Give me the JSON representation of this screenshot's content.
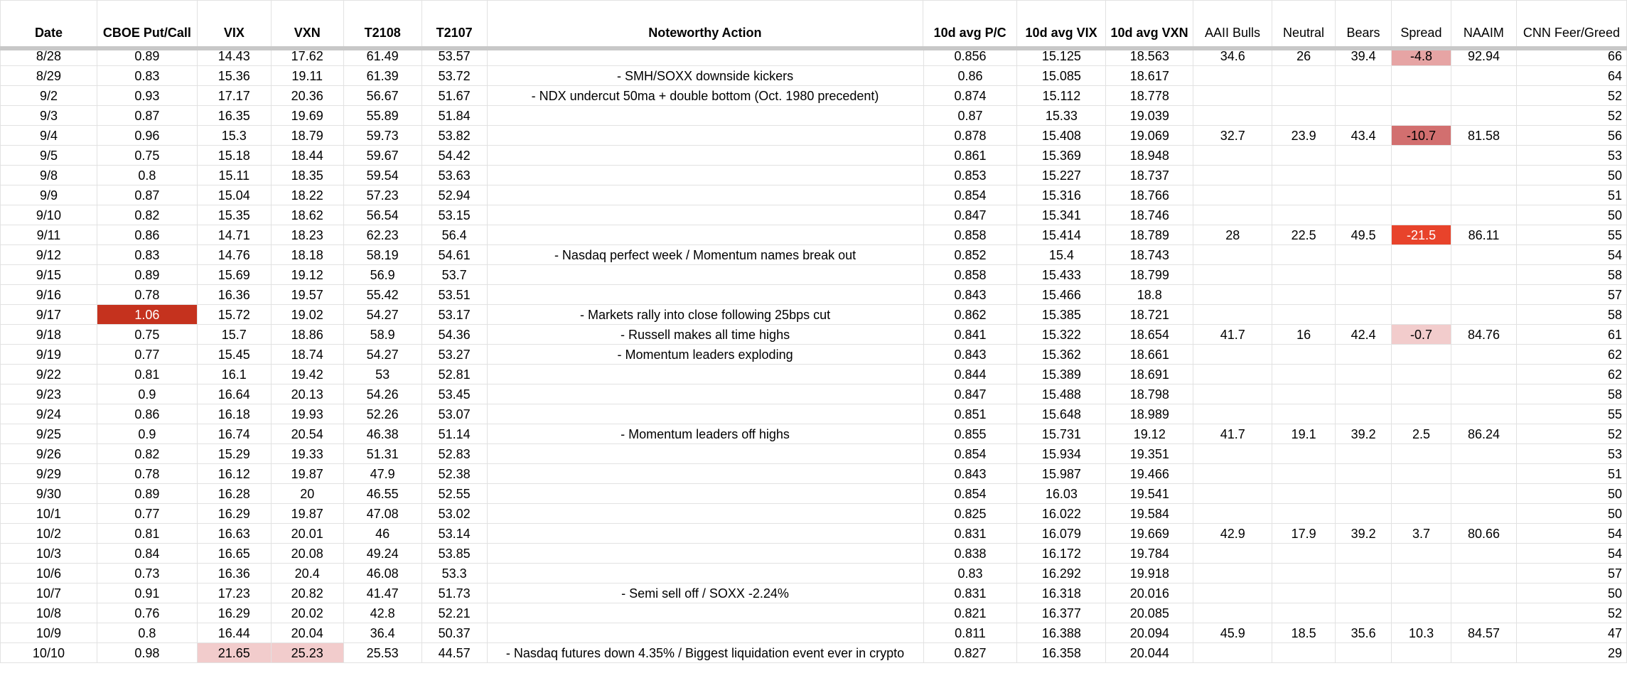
{
  "table": {
    "headers": [
      "Date",
      "CBOE Put/Call",
      "VIX",
      "VXN",
      "T2108",
      "T2107",
      "Noteworthy Action",
      "10d avg P/C",
      "10d avg VIX",
      "10d avg VXN",
      "AAII Bulls",
      "Neutral",
      "Bears",
      "Spread",
      "NAAIM",
      "CNN Feer/Greed"
    ],
    "rows": [
      [
        "8/28",
        "0.89",
        "14.43",
        "17.62",
        "61.49",
        "53.57",
        null,
        "0.856",
        "15.125",
        "18.563",
        "34.6",
        "26",
        "39.4",
        {
          "text": "-4.8",
          "fill": "#e6a4a4"
        },
        "92.94",
        "66"
      ],
      [
        "8/29",
        "0.83",
        "15.36",
        "19.11",
        "61.39",
        "53.72",
        "- SMH/SOXX downside kickers",
        "0.86",
        "15.085",
        "18.617",
        null,
        null,
        null,
        null,
        null,
        "64"
      ],
      [
        "9/2",
        "0.93",
        "17.17",
        "20.36",
        "56.67",
        "51.67",
        "- NDX undercut 50ma + double bottom (Oct. 1980 precedent)",
        "0.874",
        "15.112",
        "18.778",
        null,
        null,
        null,
        null,
        null,
        "52"
      ],
      [
        "9/3",
        "0.87",
        "16.35",
        "19.69",
        "55.89",
        "51.84",
        null,
        "0.87",
        "15.33",
        "19.039",
        null,
        null,
        null,
        null,
        null,
        "52"
      ],
      [
        "9/4",
        "0.96",
        "15.3",
        "18.79",
        "59.73",
        "53.82",
        null,
        "0.878",
        "15.408",
        "19.069",
        "32.7",
        "23.9",
        "43.4",
        {
          "text": "-10.7",
          "fill": "#d26f6f"
        },
        "81.58",
        "56"
      ],
      [
        "9/5",
        "0.75",
        "15.18",
        "18.44",
        "59.67",
        "54.42",
        null,
        "0.861",
        "15.369",
        "18.948",
        null,
        null,
        null,
        null,
        null,
        "53"
      ],
      [
        "9/8",
        "0.8",
        "15.11",
        "18.35",
        "59.54",
        "53.63",
        null,
        "0.853",
        "15.227",
        "18.737",
        null,
        null,
        null,
        null,
        null,
        "50"
      ],
      [
        "9/9",
        "0.87",
        "15.04",
        "18.22",
        "57.23",
        "52.94",
        null,
        "0.854",
        "15.316",
        "18.766",
        null,
        null,
        null,
        null,
        null,
        "51"
      ],
      [
        "9/10",
        "0.82",
        "15.35",
        "18.62",
        "56.54",
        "53.15",
        null,
        "0.847",
        "15.341",
        "18.746",
        null,
        null,
        null,
        null,
        null,
        "50"
      ],
      [
        "9/11",
        "0.86",
        "14.71",
        "18.23",
        "62.23",
        "56.4",
        null,
        "0.858",
        "15.414",
        "18.789",
        "28",
        "22.5",
        "49.5",
        {
          "text": "-21.5",
          "fill": "#e8432b",
          "color": "#ffffff"
        },
        "86.11",
        "55"
      ],
      [
        "9/12",
        "0.83",
        "14.76",
        "18.18",
        "58.19",
        "54.61",
        "- Nasdaq perfect week / Momentum names break out",
        "0.852",
        "15.4",
        "18.743",
        null,
        null,
        null,
        null,
        null,
        "54"
      ],
      [
        "9/15",
        "0.89",
        "15.69",
        "19.12",
        "56.9",
        "53.7",
        null,
        "0.858",
        "15.433",
        "18.799",
        null,
        null,
        null,
        null,
        null,
        "58"
      ],
      [
        "9/16",
        "0.78",
        "16.36",
        "19.57",
        "55.42",
        "53.51",
        null,
        "0.843",
        "15.466",
        "18.8",
        null,
        null,
        null,
        null,
        null,
        "57"
      ],
      [
        "9/17",
        {
          "text": "1.06",
          "fill": "#c5321e",
          "color": "#ffffff"
        },
        "15.72",
        "19.02",
        "54.27",
        "53.17",
        "- Markets rally into close following 25bps cut",
        "0.862",
        "15.385",
        "18.721",
        null,
        null,
        null,
        null,
        null,
        "58"
      ],
      [
        "9/18",
        "0.75",
        "15.7",
        "18.86",
        "58.9",
        "54.36",
        "- Russell makes all time highs",
        "0.841",
        "15.322",
        "18.654",
        "41.7",
        "16",
        "42.4",
        {
          "text": "-0.7",
          "fill": "#f2cccc"
        },
        "84.76",
        "61"
      ],
      [
        "9/19",
        "0.77",
        "15.45",
        "18.74",
        "54.27",
        "53.27",
        "- Momentum leaders exploding",
        "0.843",
        "15.362",
        "18.661",
        null,
        null,
        null,
        null,
        null,
        "62"
      ],
      [
        "9/22",
        "0.81",
        "16.1",
        "19.42",
        "53",
        "52.81",
        null,
        "0.844",
        "15.389",
        "18.691",
        null,
        null,
        null,
        null,
        null,
        "62"
      ],
      [
        "9/23",
        "0.9",
        "16.64",
        "20.13",
        "54.26",
        "53.45",
        null,
        "0.847",
        "15.488",
        "18.798",
        null,
        null,
        null,
        null,
        null,
        "58"
      ],
      [
        "9/24",
        "0.86",
        "16.18",
        "19.93",
        "52.26",
        "53.07",
        null,
        "0.851",
        "15.648",
        "18.989",
        null,
        null,
        null,
        null,
        null,
        "55"
      ],
      [
        "9/25",
        "0.9",
        "16.74",
        "20.54",
        "46.38",
        "51.14",
        "- Momentum leaders off highs",
        "0.855",
        "15.731",
        "19.12",
        "41.7",
        "19.1",
        "39.2",
        "2.5",
        "86.24",
        "52"
      ],
      [
        "9/26",
        "0.82",
        "15.29",
        "19.33",
        "51.31",
        "52.83",
        null,
        "0.854",
        "15.934",
        "19.351",
        null,
        null,
        null,
        null,
        null,
        "53"
      ],
      [
        "9/29",
        "0.78",
        "16.12",
        "19.87",
        "47.9",
        "52.38",
        null,
        "0.843",
        "15.987",
        "19.466",
        null,
        null,
        null,
        null,
        null,
        "51"
      ],
      [
        "9/30",
        "0.89",
        "16.28",
        "20",
        "46.55",
        "52.55",
        null,
        "0.854",
        "16.03",
        "19.541",
        null,
        null,
        null,
        null,
        null,
        "50"
      ],
      [
        "10/1",
        "0.77",
        "16.29",
        "19.87",
        "47.08",
        "53.02",
        null,
        "0.825",
        "16.022",
        "19.584",
        null,
        null,
        null,
        null,
        null,
        "50"
      ],
      [
        "10/2",
        "0.81",
        "16.63",
        "20.01",
        "46",
        "53.14",
        null,
        "0.831",
        "16.079",
        "19.669",
        "42.9",
        "17.9",
        "39.2",
        "3.7",
        "80.66",
        "54"
      ],
      [
        "10/3",
        "0.84",
        "16.65",
        "20.08",
        "49.24",
        "53.85",
        null,
        "0.838",
        "16.172",
        "19.784",
        null,
        null,
        null,
        null,
        null,
        "54"
      ],
      [
        "10/6",
        "0.73",
        "16.36",
        "20.4",
        "46.08",
        "53.3",
        null,
        "0.83",
        "16.292",
        "19.918",
        null,
        null,
        null,
        null,
        null,
        "57"
      ],
      [
        "10/7",
        "0.91",
        "17.23",
        "20.82",
        "41.47",
        "51.73",
        "- Semi sell off / SOXX -2.24%",
        "0.831",
        "16.318",
        "20.016",
        null,
        null,
        null,
        null,
        null,
        "50"
      ],
      [
        "10/8",
        "0.76",
        "16.29",
        "20.02",
        "42.8",
        "52.21",
        null,
        "0.821",
        "16.377",
        "20.085",
        null,
        null,
        null,
        null,
        null,
        "52"
      ],
      [
        "10/9",
        "0.8",
        "16.44",
        "20.04",
        "36.4",
        "50.37",
        null,
        "0.811",
        "16.388",
        "20.094",
        "45.9",
        "18.5",
        "35.6",
        "10.3",
        "84.57",
        "47"
      ],
      [
        "10/10",
        "0.98",
        {
          "text": "21.65",
          "fill": "#f2cccc"
        },
        {
          "text": "25.23",
          "fill": "#f2cccc"
        },
        "25.53",
        "44.57",
        "- Nasdaq futures down 4.35% / Biggest liquidation event ever in crypto",
        "0.827",
        "16.358",
        "20.044",
        null,
        null,
        null,
        null,
        null,
        "29"
      ]
    ]
  }
}
